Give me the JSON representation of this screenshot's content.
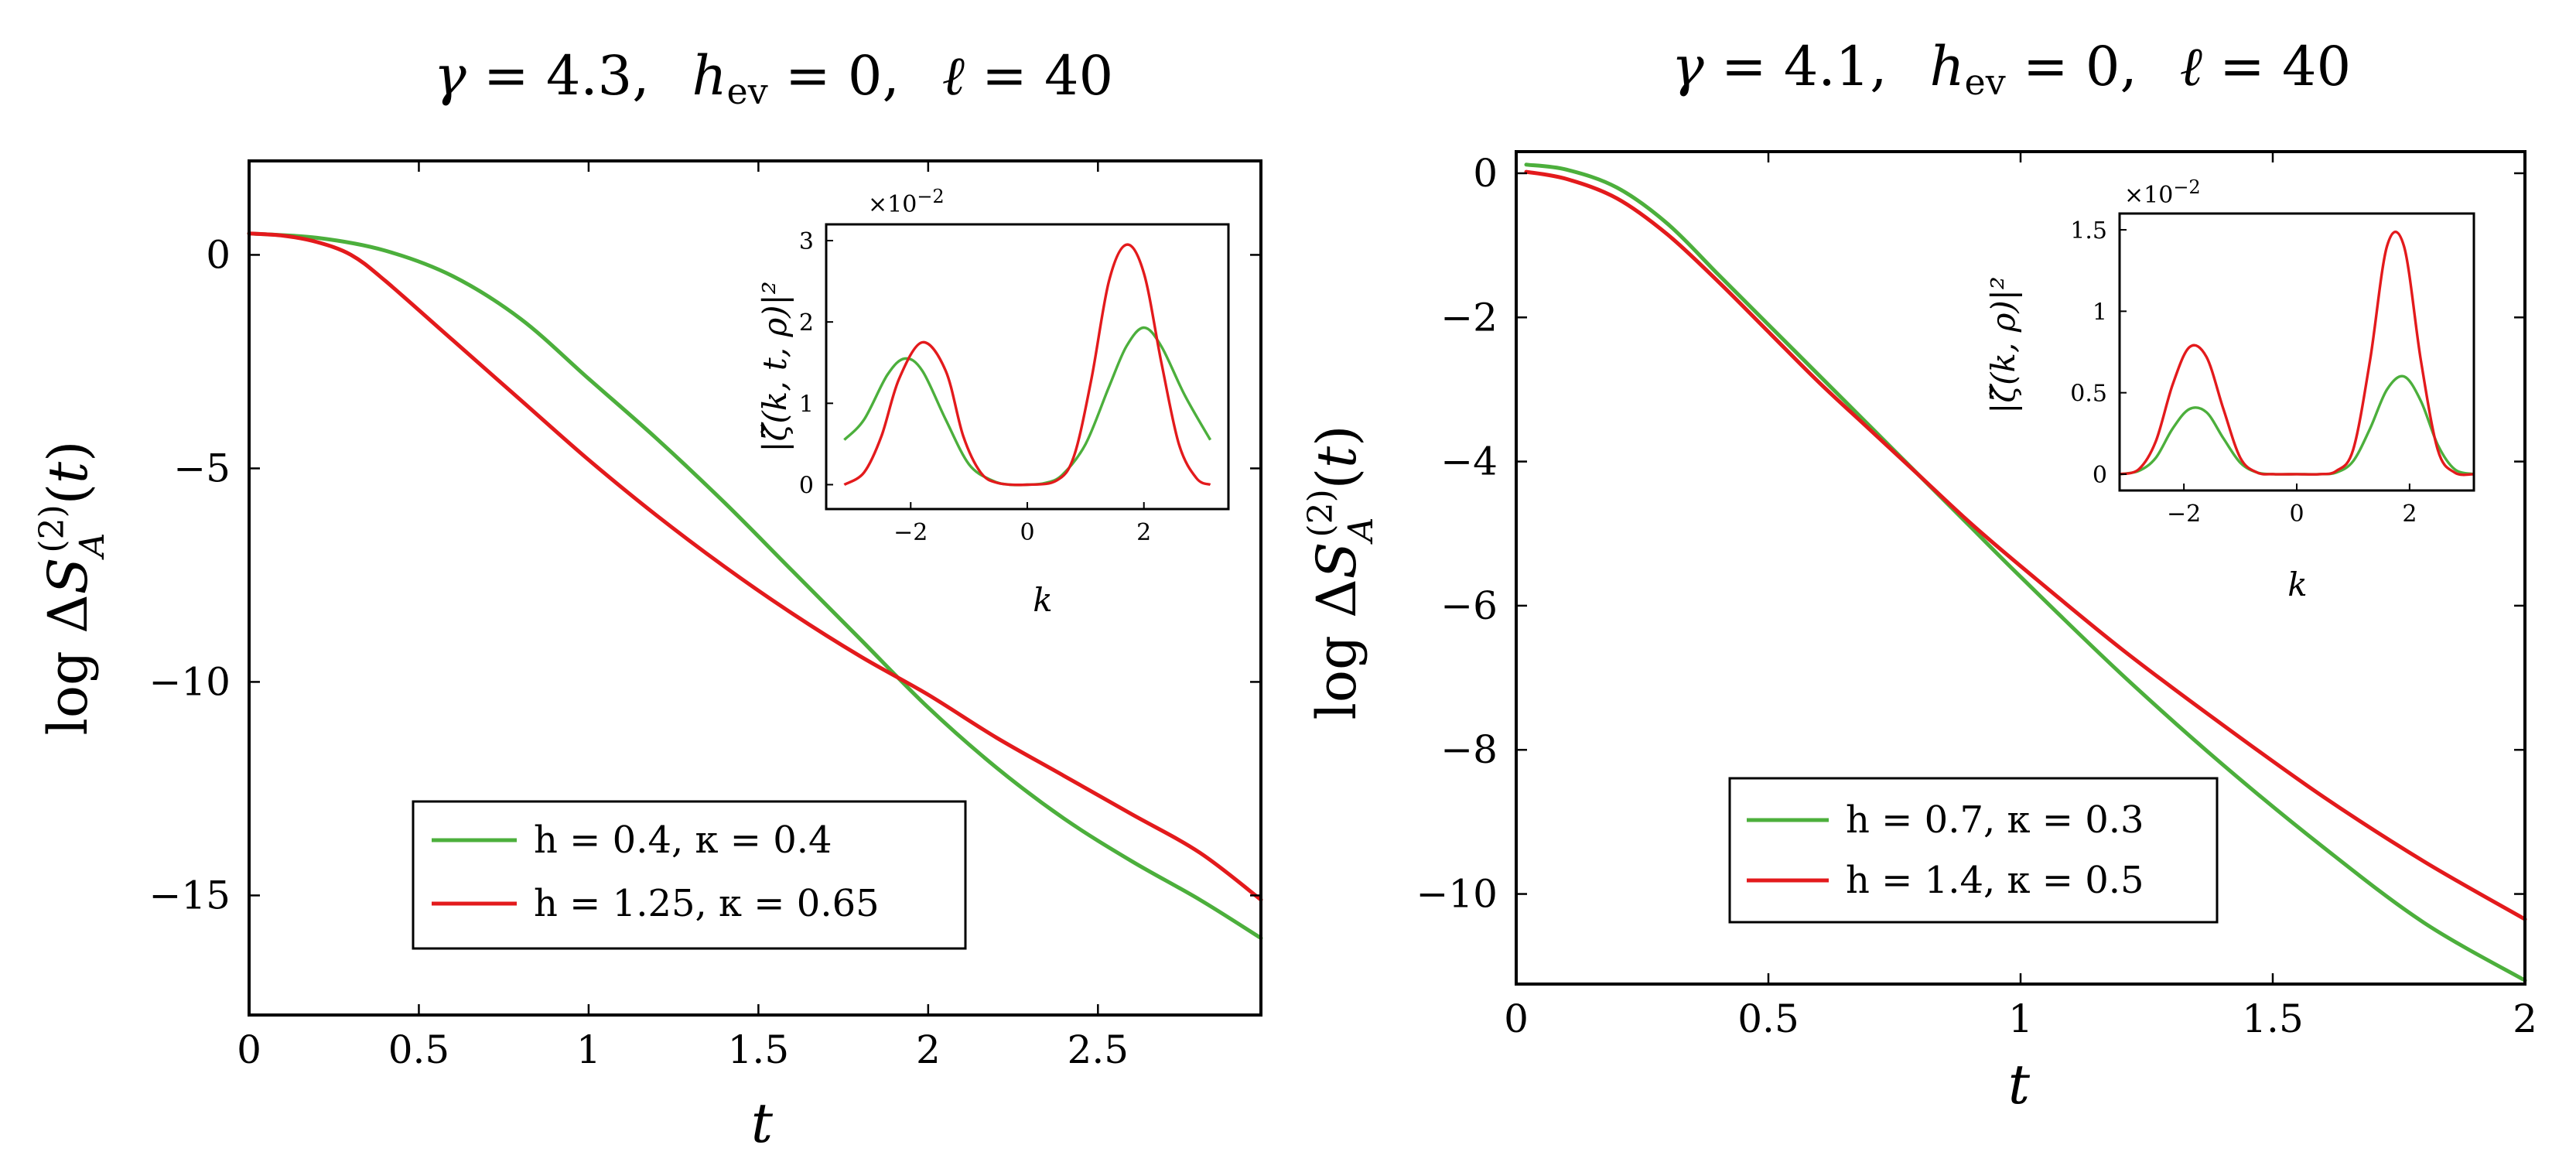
{
  "colors": {
    "green": "#4caf3c",
    "red": "#e31a1c"
  },
  "chart_data": [
    {
      "type": "line",
      "title": "γ = 4.3,    h_ev = 0,    ℓ = 40",
      "xlabel": "t",
      "ylabel": "log ΔS_A^(2)(t)",
      "xlim": [
        0,
        2.98
      ],
      "ylim": [
        -17.8,
        2.2
      ],
      "xticks": [
        "0",
        "0.5",
        "1",
        "1.5",
        "2",
        "2.5"
      ],
      "xtick_values": [
        0,
        0.5,
        1,
        1.5,
        2,
        2.5
      ],
      "yticks": [
        "0",
        "−5",
        "−10",
        "−15"
      ],
      "ytick_values": [
        0,
        -5,
        -10,
        -15
      ],
      "legend_position": "bottom-center",
      "series": [
        {
          "name": "h = 0.4,  κ = 0.4",
          "color": "green",
          "x": [
            0,
            0.2,
            0.4,
            0.6,
            0.8,
            1.0,
            1.2,
            1.4,
            1.6,
            1.8,
            2.0,
            2.2,
            2.4,
            2.6,
            2.8,
            2.98
          ],
          "y": [
            0.5,
            0.4,
            0.1,
            -0.5,
            -1.5,
            -2.9,
            -4.3,
            -5.8,
            -7.4,
            -9.0,
            -10.6,
            -12.0,
            -13.2,
            -14.2,
            -15.1,
            -16.0
          ]
        },
        {
          "name": "h = 1.25,  κ = 0.65",
          "color": "red",
          "x": [
            0,
            0.1,
            0.2,
            0.3,
            0.4,
            0.6,
            0.8,
            1.0,
            1.2,
            1.4,
            1.6,
            1.8,
            2.0,
            2.2,
            2.4,
            2.6,
            2.8,
            2.98
          ],
          "y": [
            0.5,
            0.45,
            0.3,
            0.0,
            -0.6,
            -2.0,
            -3.4,
            -4.8,
            -6.1,
            -7.3,
            -8.4,
            -9.4,
            -10.3,
            -11.3,
            -12.2,
            -13.1,
            -14.0,
            -15.1
          ]
        }
      ],
      "inset": {
        "ylabel": "|ζ̃(k, t, ρ)|²",
        "xlabel": "k",
        "multiplier": "×10−2",
        "xlim": [
          -3.45,
          3.45
        ],
        "ylim": [
          -0.3,
          3.2
        ],
        "xticks": [
          "−2",
          "0",
          "2"
        ],
        "xtick_values": [
          -2,
          0,
          2
        ],
        "yticks": [
          "0",
          "1",
          "2",
          "3"
        ],
        "ytick_values": [
          0,
          1,
          2,
          3
        ],
        "series": [
          {
            "color": "green",
            "x": [
              -3.14,
              -2.8,
              -2.4,
              -2.1,
              -1.8,
              -1.4,
              -1.0,
              -0.6,
              -0.3,
              0,
              0.3,
              0.6,
              1.0,
              1.4,
              1.7,
              2.0,
              2.3,
              2.7,
              3.14
            ],
            "y": [
              0.55,
              0.8,
              1.35,
              1.55,
              1.4,
              0.8,
              0.25,
              0.05,
              0.0,
              0.0,
              0.02,
              0.12,
              0.5,
              1.2,
              1.7,
              1.93,
              1.7,
              1.1,
              0.55
            ]
          },
          {
            "color": "red",
            "x": [
              -3.14,
              -2.8,
              -2.5,
              -2.2,
              -1.8,
              -1.4,
              -1.1,
              -0.8,
              -0.5,
              0,
              0.5,
              0.8,
              1.1,
              1.4,
              1.7,
              2.0,
              2.3,
              2.6,
              2.9,
              3.14
            ],
            "y": [
              0.0,
              0.15,
              0.6,
              1.3,
              1.75,
              1.4,
              0.6,
              0.15,
              0.02,
              0.0,
              0.05,
              0.35,
              1.3,
              2.5,
              2.95,
              2.6,
              1.5,
              0.5,
              0.08,
              0.0
            ]
          }
        ]
      }
    },
    {
      "type": "line",
      "title": "γ = 4.1,    h_ev = 0,    ℓ = 40",
      "xlabel": "t",
      "ylabel": "log ΔS_A^(2)(t)",
      "xlim": [
        0,
        2
      ],
      "ylim": [
        -11.25,
        0.3
      ],
      "xticks": [
        "0",
        "0.5",
        "1",
        "1.5",
        "2"
      ],
      "xtick_values": [
        0,
        0.5,
        1,
        1.5,
        2
      ],
      "yticks": [
        "0",
        "−2",
        "−4",
        "−6",
        "−8",
        "−10"
      ],
      "ytick_values": [
        0,
        -2,
        -4,
        -6,
        -8,
        -10
      ],
      "legend_position": "bottom-left",
      "series": [
        {
          "name": "h = 0.7,  κ = 0.3",
          "color": "green",
          "x": [
            0.02,
            0.1,
            0.2,
            0.3,
            0.4,
            0.5,
            0.6,
            0.7,
            0.8,
            0.9,
            1.0,
            1.2,
            1.4,
            1.6,
            1.8,
            2.0
          ],
          "y": [
            0.12,
            0.05,
            -0.2,
            -0.7,
            -1.4,
            -2.1,
            -2.8,
            -3.5,
            -4.2,
            -4.9,
            -5.6,
            -6.95,
            -8.2,
            -9.35,
            -10.4,
            -11.2
          ]
        },
        {
          "name": "h = 1.4,  κ = 0.5",
          "color": "red",
          "x": [
            0.02,
            0.1,
            0.2,
            0.3,
            0.4,
            0.5,
            0.6,
            0.7,
            0.8,
            0.9,
            1.0,
            1.2,
            1.4,
            1.6,
            1.8,
            2.0
          ],
          "y": [
            0.02,
            -0.08,
            -0.35,
            -0.85,
            -1.5,
            -2.2,
            -2.9,
            -3.55,
            -4.2,
            -4.85,
            -5.45,
            -6.6,
            -7.65,
            -8.65,
            -9.55,
            -10.35
          ]
        }
      ],
      "inset": {
        "ylabel": "|ζ̃(k, ρ)|²",
        "xlabel": "k",
        "multiplier": "×10−2",
        "xlim": [
          -3.14,
          3.14
        ],
        "ylim": [
          -0.1,
          1.6
        ],
        "xticks": [
          "−2",
          "0",
          "2"
        ],
        "xtick_values": [
          -2,
          0,
          2
        ],
        "yticks": [
          "0",
          "0.5",
          "1",
          "1.5"
        ],
        "ytick_values": [
          0,
          0.5,
          1,
          1.5
        ],
        "series": [
          {
            "color": "green",
            "x": [
              -3.14,
              -2.8,
              -2.5,
              -2.2,
              -1.9,
              -1.6,
              -1.3,
              -1.0,
              -0.7,
              -0.4,
              0,
              0.4,
              0.7,
              1.0,
              1.3,
              1.6,
              1.9,
              2.2,
              2.5,
              2.8,
              3.14
            ],
            "y": [
              0.0,
              0.02,
              0.1,
              0.28,
              0.4,
              0.38,
              0.22,
              0.07,
              0.01,
              0.0,
              0.0,
              0.0,
              0.01,
              0.08,
              0.28,
              0.52,
              0.6,
              0.45,
              0.18,
              0.03,
              0.0
            ]
          },
          {
            "color": "red",
            "x": [
              -3.14,
              -2.8,
              -2.5,
              -2.2,
              -1.9,
              -1.6,
              -1.3,
              -1.0,
              -0.7,
              -0.4,
              0,
              0.4,
              0.7,
              1.0,
              1.3,
              1.6,
              1.9,
              2.2,
              2.5,
              2.8,
              3.14
            ],
            "y": [
              0.0,
              0.03,
              0.2,
              0.55,
              0.78,
              0.72,
              0.4,
              0.1,
              0.01,
              0.0,
              0.0,
              0.0,
              0.02,
              0.15,
              0.7,
              1.4,
              1.4,
              0.7,
              0.15,
              0.01,
              0.0
            ]
          }
        ]
      }
    }
  ]
}
